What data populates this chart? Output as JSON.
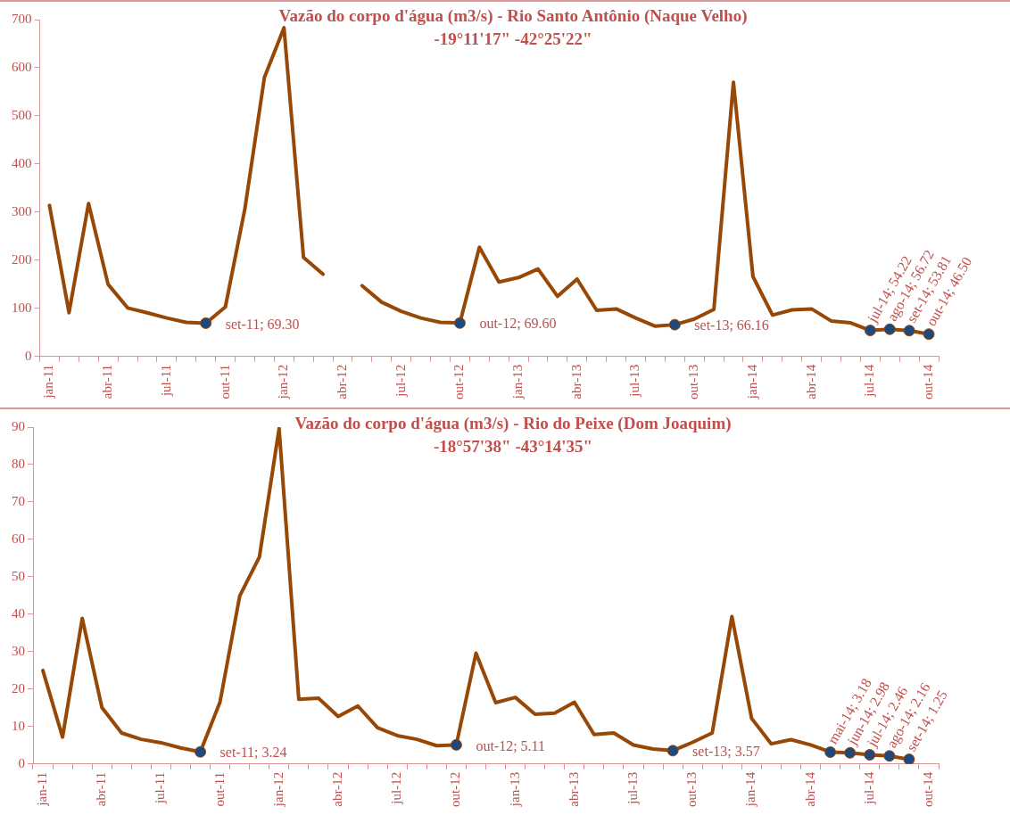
{
  "chart_data": [
    {
      "type": "line",
      "title": "Vazão do corpo d'água (m3/s) - Rio Santo Antônio (Naque Velho)",
      "subtitle": "-19°11'17\" -42°25'22\"",
      "categories": [
        "jan-11",
        null,
        null,
        "abr-11",
        null,
        null,
        "jul-11",
        null,
        null,
        "out-11",
        null,
        null,
        "jan-12",
        null,
        null,
        "abr-12",
        null,
        null,
        "jul-12",
        null,
        null,
        "out-12",
        null,
        null,
        "jan-13",
        null,
        null,
        "abr-13",
        null,
        null,
        "jul-13",
        null,
        null,
        "out-13",
        null,
        null,
        "jan-14",
        null,
        null,
        "abr-14",
        null,
        null,
        "jul-14",
        null,
        null,
        "out-14"
      ],
      "series": [
        {
          "color": "#974706",
          "values": [
            314,
            91,
            318,
            150,
            101,
            91,
            80,
            71,
            69.3,
            103,
            307,
            580,
            683,
            206,
            171,
            null,
            147,
            113,
            94,
            80,
            71,
            69.6,
            227,
            155,
            164,
            182,
            125,
            161,
            96,
            99,
            80,
            63,
            66.16,
            78,
            98,
            570,
            166,
            86,
            97,
            99,
            74,
            70,
            54.22,
            56.72,
            53.81,
            46.5
          ],
          "value_labels": [
            null,
            null,
            null,
            null,
            null,
            null,
            null,
            null,
            "set-11; 69.30",
            null,
            null,
            null,
            null,
            null,
            null,
            null,
            null,
            null,
            null,
            null,
            null,
            "out-12; 69.60",
            null,
            null,
            null,
            null,
            null,
            null,
            null,
            null,
            null,
            null,
            "set-13; 66.16",
            null,
            null,
            null,
            null,
            null,
            null,
            null,
            null,
            null,
            "jul-14; 54.22",
            "ago-14; 56.72",
            "set-14; 53.81",
            "out-14; 46.50"
          ]
        }
      ],
      "ylim": [
        0,
        700
      ],
      "yticks": [
        0,
        100,
        200,
        300,
        400,
        500,
        600,
        700
      ],
      "grid": false,
      "legend": false
    },
    {
      "type": "line",
      "title": "Vazão do corpo d'água (m3/s) - Rio do Peixe (Dom Joaquim)",
      "subtitle": "-18°57'38\" -43°14'35\"",
      "categories": [
        "jan-11",
        null,
        null,
        "abr-11",
        null,
        null,
        "jul-11",
        null,
        null,
        "out-11",
        null,
        null,
        "jan-12",
        null,
        null,
        "abr-12",
        null,
        null,
        "jul-12",
        null,
        null,
        "out-12",
        null,
        null,
        "jan-13",
        null,
        null,
        "abr-13",
        null,
        null,
        "jul-13",
        null,
        null,
        "out-13",
        null,
        null,
        "jan-14",
        null,
        null,
        "abr-14",
        null,
        null,
        "jul-14",
        null,
        null,
        "out-14"
      ],
      "series": [
        {
          "color": "#974706",
          "values": [
            25,
            7.2,
            38.9,
            15.1,
            8.3,
            6.6,
            5.7,
            4.3,
            3.24,
            16.6,
            44.9,
            55.3,
            89.6,
            17.3,
            17.6,
            12.7,
            15.5,
            9.7,
            7.6,
            6.6,
            4.9,
            5.11,
            29.6,
            16.4,
            17.8,
            13.3,
            13.6,
            16.5,
            7.9,
            8.3,
            5.1,
            4.0,
            3.57,
            5.8,
            8.3,
            39.4,
            12.2,
            5.4,
            6.5,
            5.1,
            3.18,
            2.98,
            2.46,
            2.16,
            1.25,
            null
          ],
          "value_labels": [
            null,
            null,
            null,
            null,
            null,
            null,
            null,
            null,
            "set-11; 3.24",
            null,
            null,
            null,
            null,
            null,
            null,
            null,
            null,
            null,
            null,
            null,
            null,
            "out-12; 5.11",
            null,
            null,
            null,
            null,
            null,
            null,
            null,
            null,
            null,
            null,
            "set-13; 3.57",
            null,
            null,
            null,
            null,
            null,
            null,
            null,
            "mai-14; 3.18",
            "jun-14; 2.98",
            "jul-14; 2.46",
            "ago-14; 2.16",
            "set-14; 1.25",
            null
          ]
        }
      ],
      "ylim": [
        0,
        90
      ],
      "yticks": [
        0,
        10,
        20,
        30,
        40,
        50,
        60,
        70,
        80,
        90
      ],
      "grid": false,
      "legend": false
    }
  ]
}
